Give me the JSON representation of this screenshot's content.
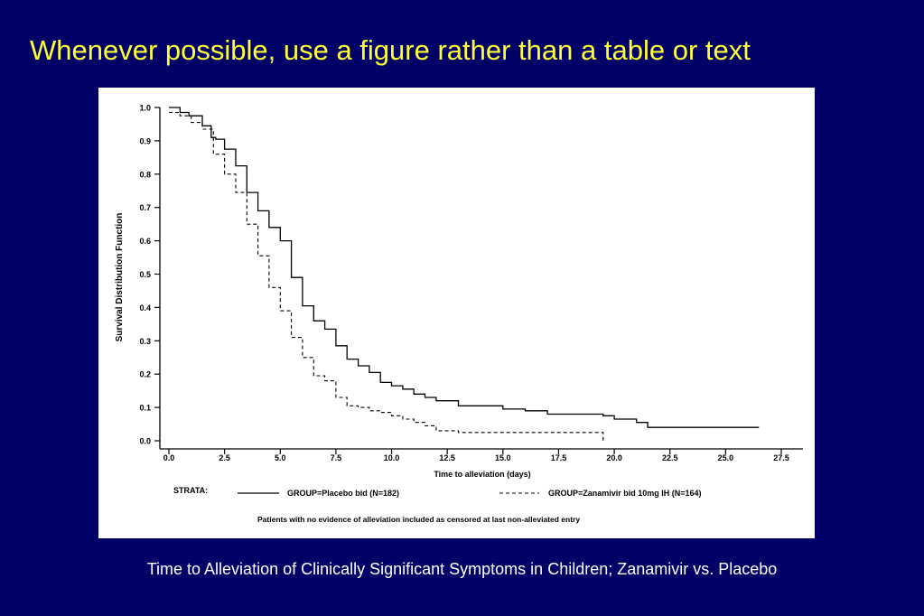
{
  "slide": {
    "title": "Whenever possible, use a figure rather than a table or text",
    "caption": "Time to Alleviation of Clinically Significant Symptoms in Children; Zanamivir vs. Placebo",
    "background_color": "#000066",
    "title_color": "#ffff33",
    "caption_color": "#ffffff"
  },
  "chart_data": {
    "type": "line",
    "step": true,
    "xlabel": "Time to alleviation (days)",
    "ylabel": "Survival Distribution Function",
    "xlim": [
      0,
      27.5
    ],
    "ylim": [
      0,
      1.0
    ],
    "xticks": [
      0.0,
      2.5,
      5.0,
      7.5,
      10.0,
      12.5,
      15.0,
      17.5,
      20.0,
      22.5,
      25.0,
      27.5
    ],
    "xtick_labels": [
      "0.0",
      "2.5",
      "5.0",
      "7.5",
      "10.0",
      "12.5",
      "15.0",
      "17.5",
      "20.0",
      "22.5",
      "25.0",
      "27.5"
    ],
    "yticks": [
      0.0,
      0.1,
      0.2,
      0.3,
      0.4,
      0.5,
      0.6,
      0.7,
      0.8,
      0.9,
      1.0
    ],
    "ytick_labels": [
      "0.0",
      "0.1",
      "0.2",
      "0.3",
      "0.4",
      "0.5",
      "0.6",
      "0.7",
      "0.8",
      "0.9",
      "1.0"
    ],
    "grid": false,
    "legend_title": "STRATA:",
    "legend_position": "bottom",
    "footnote": "Patients with no evidence of alleviation included as censored at last non-alleviated entry",
    "series": [
      {
        "name": "GROUP=Placebo bid (N=182)",
        "line_style": "solid",
        "color": "#000000",
        "x": [
          0,
          0.5,
          0.9,
          1.1,
          1.5,
          1.9,
          2.1,
          2.5,
          3.0,
          3.5,
          4.0,
          4.5,
          5.0,
          5.5,
          6.0,
          6.5,
          7.0,
          7.5,
          8.0,
          8.5,
          9.0,
          9.5,
          10.0,
          10.5,
          11.0,
          11.5,
          12.0,
          13.0,
          14.0,
          15.0,
          16.0,
          17.0,
          18.0,
          19.0,
          19.5,
          20.0,
          20.5,
          21.0,
          21.5,
          22.5,
          26.5
        ],
        "y": [
          1.0,
          0.985,
          0.975,
          0.975,
          0.945,
          0.91,
          0.905,
          0.875,
          0.825,
          0.745,
          0.69,
          0.64,
          0.6,
          0.49,
          0.405,
          0.36,
          0.335,
          0.285,
          0.245,
          0.225,
          0.205,
          0.175,
          0.165,
          0.155,
          0.14,
          0.13,
          0.12,
          0.105,
          0.105,
          0.095,
          0.09,
          0.08,
          0.08,
          0.08,
          0.075,
          0.065,
          0.065,
          0.055,
          0.04,
          0.04,
          0.04
        ]
      },
      {
        "name": "GROUP=Zanamivir bid 10mg IH (N=164)",
        "line_style": "dashed",
        "color": "#000000",
        "x": [
          0,
          0.5,
          1.0,
          1.5,
          2.0,
          2.5,
          3.0,
          3.5,
          4.0,
          4.5,
          5.0,
          5.5,
          6.0,
          6.5,
          7.0,
          7.5,
          8.0,
          8.5,
          9.0,
          9.5,
          10.0,
          10.5,
          11.0,
          11.5,
          12.0,
          13.0,
          14.0,
          15.0,
          16.0,
          17.0,
          18.0,
          19.5
        ],
        "y": [
          0.985,
          0.975,
          0.955,
          0.935,
          0.86,
          0.8,
          0.745,
          0.65,
          0.555,
          0.46,
          0.39,
          0.31,
          0.25,
          0.195,
          0.18,
          0.13,
          0.105,
          0.1,
          0.09,
          0.085,
          0.075,
          0.065,
          0.055,
          0.045,
          0.03,
          0.025,
          0.025,
          0.025,
          0.025,
          0.025,
          0.025,
          0.0
        ]
      }
    ]
  }
}
